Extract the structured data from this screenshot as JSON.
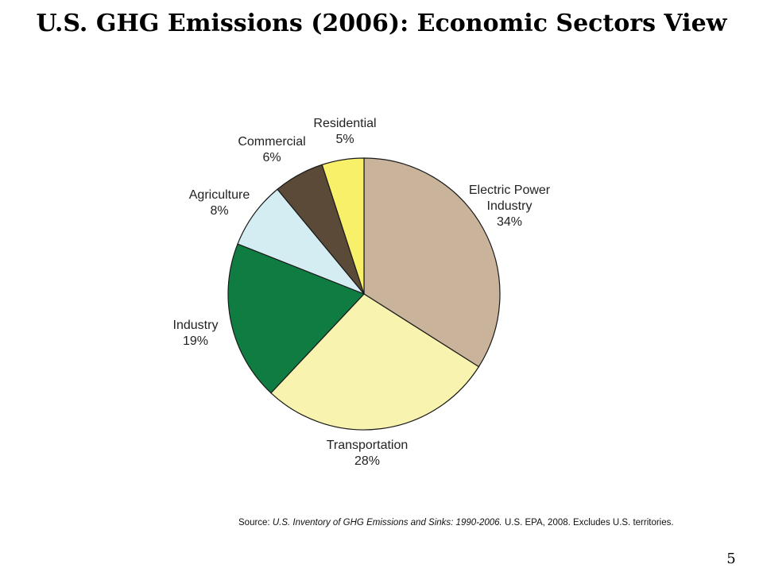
{
  "slide": {
    "title": "U.S. GHG Emissions (2006): Economic Sectors View",
    "page_number": "5"
  },
  "source": {
    "prefix": "Source: ",
    "title_italic": "U.S. Inventory of GHG Emissions and Sinks: 1990-2006.",
    "suffix": " U.S. EPA, 2008. Excludes U.S. territories."
  },
  "chart_data": {
    "type": "pie",
    "title": "",
    "start_angle_deg": 0,
    "direction": "clockwise",
    "slices": [
      {
        "name": "Electric Power Industry",
        "label_lines": [
          "Electric Power",
          "Industry",
          "34%"
        ],
        "value": 34,
        "color": "#C9B39A"
      },
      {
        "name": "Transportation",
        "label_lines": [
          "Transportation",
          "28%"
        ],
        "value": 28,
        "color": "#F8F3AE"
      },
      {
        "name": "Industry",
        "label_lines": [
          "Industry",
          "19%"
        ],
        "value": 19,
        "color": "#0F7D41"
      },
      {
        "name": "Agriculture",
        "label_lines": [
          "Agriculture",
          "8%"
        ],
        "value": 8,
        "color": "#D4EDF3"
      },
      {
        "name": "Commercial",
        "label_lines": [
          "Commercial",
          "6%"
        ],
        "value": 6,
        "color": "#5C4A38"
      },
      {
        "name": "Residential",
        "label_lines": [
          "Residential",
          "5%"
        ],
        "value": 5,
        "color": "#F9F06A"
      }
    ]
  }
}
